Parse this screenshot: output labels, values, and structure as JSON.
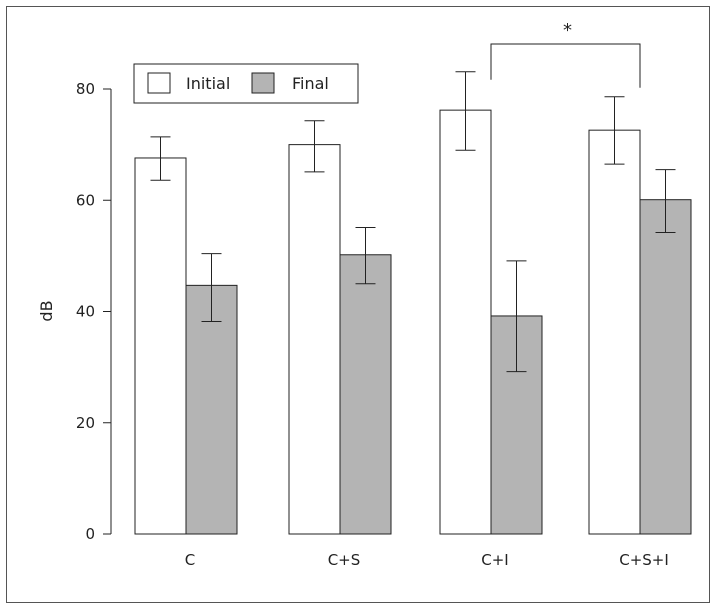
{
  "chart_data": {
    "type": "bar",
    "categories": [
      "C",
      "C+S",
      "C+I",
      "C+S+I"
    ],
    "series": [
      {
        "name": "Initial",
        "values": [
          67.6,
          70.0,
          76.2,
          72.6
        ],
        "err_low": [
          63.6,
          65.1,
          69.0,
          66.5
        ],
        "err_high": [
          71.4,
          74.3,
          83.1,
          78.6
        ],
        "color": "#ffffff"
      },
      {
        "name": "Final",
        "values": [
          44.7,
          50.2,
          39.2,
          60.1
        ],
        "err_low": [
          38.2,
          45.0,
          29.2,
          54.2
        ],
        "err_high": [
          50.4,
          55.1,
          49.1,
          65.5
        ],
        "color": "#b4b4b4"
      }
    ],
    "ylabel": "dB",
    "ylim": [
      0,
      80
    ],
    "yticks": [
      "0",
      "20",
      "40",
      "60",
      "80"
    ],
    "legend_position": "top-left",
    "significance": {
      "label": "*",
      "from": "C+I",
      "to": "C+S+I",
      "series": "Initial"
    }
  }
}
